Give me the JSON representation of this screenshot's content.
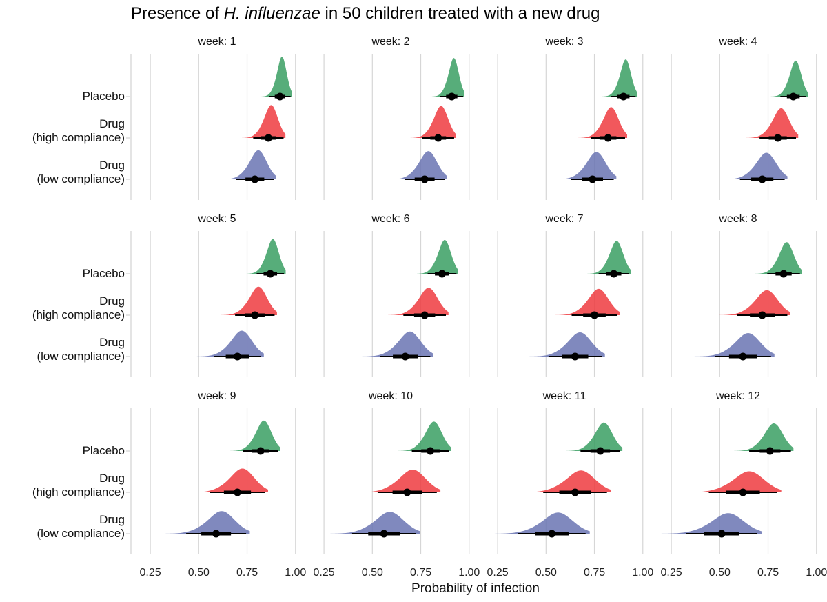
{
  "chart_data": {
    "type": "density-interval",
    "title": {
      "prefix": "Presence of ",
      "italic": "H. influenzae",
      "suffix": " in 50 children treated with a new drug"
    },
    "xlabel": "Probability of infection",
    "xlim": [
      0.15,
      1.04
    ],
    "xticks": [
      0.25,
      0.5,
      0.75,
      1.0
    ],
    "xtick_labels": [
      "0.25",
      "0.50",
      "0.75",
      "1.00"
    ],
    "grid": "vertical major gridlines",
    "groups": [
      {
        "key": "placebo",
        "label_lines": [
          "Placebo"
        ],
        "color": "#3a9f63"
      },
      {
        "key": "high",
        "label_lines": [
          "Drug",
          "(high compliance)"
        ],
        "color": "#ef3b3f"
      },
      {
        "key": "low",
        "label_lines": [
          "Drug",
          "(low compliance)"
        ],
        "color": "#6a74b3"
      }
    ],
    "facets": [
      {
        "label": "week: 1",
        "placebo": {
          "median": 0.92,
          "sd": 0.028
        },
        "high": {
          "median": 0.86,
          "sd": 0.04
        },
        "low": {
          "median": 0.79,
          "sd": 0.05
        }
      },
      {
        "label": "week: 2",
        "placebo": {
          "median": 0.91,
          "sd": 0.03
        },
        "high": {
          "median": 0.84,
          "sd": 0.042
        },
        "low": {
          "median": 0.77,
          "sd": 0.053
        }
      },
      {
        "label": "week: 3",
        "placebo": {
          "median": 0.9,
          "sd": 0.032
        },
        "high": {
          "median": 0.82,
          "sd": 0.045
        },
        "low": {
          "median": 0.74,
          "sd": 0.056
        }
      },
      {
        "label": "week: 4",
        "placebo": {
          "median": 0.88,
          "sd": 0.034
        },
        "high": {
          "median": 0.8,
          "sd": 0.048
        },
        "low": {
          "median": 0.72,
          "sd": 0.059
        }
      },
      {
        "label": "week: 5",
        "placebo": {
          "median": 0.87,
          "sd": 0.036
        },
        "high": {
          "median": 0.79,
          "sd": 0.052
        },
        "low": {
          "median": 0.7,
          "sd": 0.062
        }
      },
      {
        "label": "week: 6",
        "placebo": {
          "median": 0.86,
          "sd": 0.038
        },
        "high": {
          "median": 0.77,
          "sd": 0.056
        },
        "low": {
          "median": 0.67,
          "sd": 0.066
        }
      },
      {
        "label": "week: 7",
        "placebo": {
          "median": 0.85,
          "sd": 0.04
        },
        "high": {
          "median": 0.75,
          "sd": 0.06
        },
        "low": {
          "median": 0.65,
          "sd": 0.07
        }
      },
      {
        "label": "week: 8",
        "placebo": {
          "median": 0.83,
          "sd": 0.043
        },
        "high": {
          "median": 0.72,
          "sd": 0.066
        },
        "low": {
          "median": 0.62,
          "sd": 0.074
        }
      },
      {
        "label": "week: 9",
        "placebo": {
          "median": 0.82,
          "sd": 0.046
        },
        "high": {
          "median": 0.7,
          "sd": 0.072
        },
        "low": {
          "median": 0.59,
          "sd": 0.079
        }
      },
      {
        "label": "week: 10",
        "placebo": {
          "median": 0.8,
          "sd": 0.049
        },
        "high": {
          "median": 0.68,
          "sd": 0.078
        },
        "low": {
          "median": 0.56,
          "sd": 0.084
        }
      },
      {
        "label": "week: 11",
        "placebo": {
          "median": 0.78,
          "sd": 0.052
        },
        "high": {
          "median": 0.65,
          "sd": 0.084
        },
        "low": {
          "median": 0.53,
          "sd": 0.089
        }
      },
      {
        "label": "week: 12",
        "placebo": {
          "median": 0.76,
          "sd": 0.055
        },
        "high": {
          "median": 0.62,
          "sd": 0.09
        },
        "low": {
          "median": 0.51,
          "sd": 0.094
        }
      }
    ]
  }
}
